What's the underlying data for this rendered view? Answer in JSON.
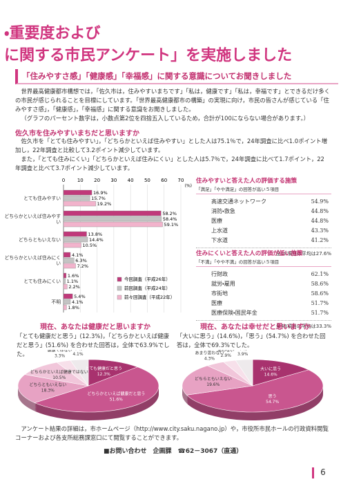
{
  "header": {
    "title_line1": "・重要度および",
    "title_line2": "に関する市民アンケート」を実施しました",
    "banner": "「住みやすさ感」「健康感」「幸福感」に関する意識についてお聞きしました"
  },
  "intro": {
    "paragraphs": [
      "世界最高健康都市構想では，「佐久市は，住みやすいまちです」「私は，健康です」「私は，幸福です」とできるだけ多くの市民が感じられることを目標にしています。「世界最高健康都市の構築」の実現に向け，市民の皆さんが感じている「住みやすさ感」，「健康感」，「幸福感」に関する意識をお聞きしました。",
      "（グラフのパーセント数字は，小数点第2位を四捨五入しているため，合計が100にならない場合があります。）"
    ]
  },
  "section1": {
    "heading": "佐久市を住みやすいまちだと思いますか",
    "paragraphs": [
      "佐久市を「とても住みやすい」，「どちらかといえば住みやすい」とした人は75.1％で，24年調査に比べ1.0ポイント増加し，22年調査と比較して3.2ポイント減少しています。",
      "また，「とても住みにくい」「どちらかといえば住みにくい」とした人は5.7％で，24年調査に比べて1.7ポイント，22年調査と比べて3.7ポイント減少しています。"
    ]
  },
  "tables": [
    {
      "heading": "住みやすいと答えた人の評価する施策",
      "subheading": "「満足」「やや満足」の回答が高い５項目",
      "rows": [
        [
          "高速交通ネットワーク",
          "54.9%"
        ],
        [
          "消防・救急",
          "44.8%"
        ],
        [
          "医療",
          "44.8%"
        ],
        [
          "上水道",
          "43.3%"
        ],
        [
          "下水道",
          "41.2%"
        ]
      ],
      "footer": "全48項目の平均は27.6%"
    },
    {
      "heading": "住みにくいと答えた人の評価が低い施策",
      "subheading": "「不満」「やや不満」の回答が高い５項目",
      "rows": [
        [
          "行財政",
          "62.1%"
        ],
        [
          "就労・雇用",
          "58.6%"
        ],
        [
          "市街地",
          "58.6%"
        ],
        [
          "医療",
          "51.7%"
        ],
        [
          "医療保険・国民年金",
          "51.7%"
        ]
      ],
      "footer": "全48項目の平均は33.3%"
    }
  ],
  "footer": {
    "text": "アンケート結果の詳細は，市ホームページ（http://www.city.saku.nagano.jp）や，市役所市民ホールの行政資料閲覧コーナーおよび各支所総務課窓口にて閲覧することができます。",
    "contact": "■お問い合わせ　企画課　☎62－3067（直通）",
    "page_number": "6"
  },
  "chart_data": [
    {
      "type": "bar",
      "unit_label": "(%)",
      "categories": [
        "とても住みやすい",
        "どちらかといえば住みやすい",
        "どちらともいえない",
        "どちらかといえば住みにくい",
        "とても住みにくい",
        "不明"
      ],
      "series": [
        {
          "name": "今回調査（平成26年）",
          "color": "#c0397a",
          "values": [
            16.9,
            58.2,
            13.8,
            4.1,
            1.6,
            5.4
          ],
          "value_labels": [
            "16.9%",
            "58.2%",
            "13.8%",
            "4.1%",
            "1.6%",
            "5.4%"
          ]
        },
        {
          "name": "前回調査（平成24年）",
          "color": "#c4c4c4",
          "values": [
            15.7,
            58.4,
            14.4,
            6.3,
            1.1,
            4.1
          ],
          "value_labels": [
            "15.7%",
            "58.4%",
            "14.4%",
            "6.3%",
            "1.1%",
            "4.1%"
          ]
        },
        {
          "name": "前々回調査（平成22年）",
          "color": "#f2b3cc",
          "values": [
            19.2,
            59.1,
            10.5,
            7.2,
            2.2,
            1.8
          ],
          "value_labels": [
            "19.2%",
            "59.1%",
            "10.5%",
            "7.2%",
            "2.2%",
            "1.8%"
          ]
        }
      ],
      "xlim": [
        0,
        70
      ],
      "xticks": [
        0,
        10,
        20,
        30,
        40,
        50,
        60,
        70
      ]
    },
    {
      "type": "pie",
      "title": "現在、あなたは健康だと思いますか",
      "caption": "「とても健康だと思う」(12.3%)，「どちらかといえば健康だと思う」(51.6%) を合わせた回答は，全体で63.9%でした。",
      "categories": [
        "とても健康だと思う",
        "どちらかといえば健康だと思う",
        "どちらともいえない",
        "どちらかといえば健康ではない",
        "健康ではない",
        "不明"
      ],
      "values": [
        12.3,
        51.6,
        18.3,
        10.5,
        3.3,
        4.1
      ],
      "value_labels": [
        "12.3%",
        "51.6%",
        "18.3%",
        "10.5%",
        "3.3%",
        "4.1%"
      ],
      "colors": [
        "#a8326e",
        "#c9568f",
        "#e7a2c3",
        "#f1c6da",
        "#f7e0ea",
        "#eeeaec"
      ]
    },
    {
      "type": "pie",
      "title": "現在、あなたは幸せだと思いますか",
      "caption": "「大いに思う」(14.6%)，「思う」(54.7%) を合わせた回答は，全体で69.3%でした。",
      "categories": [
        "大いに思う",
        "思う",
        "どちらともいえない",
        "あまり思わない",
        "思わない",
        "不明"
      ],
      "values": [
        14.6,
        54.7,
        19.6,
        4.3,
        2.9,
        3.9
      ],
      "value_labels": [
        "14.6%",
        "54.7%",
        "19.6%",
        "4.3%",
        "2.9%",
        "3.9%"
      ],
      "colors": [
        "#a8326e",
        "#c9568f",
        "#e7a2c3",
        "#f1c6da",
        "#f7e0ea",
        "#eeeaec"
      ]
    }
  ]
}
